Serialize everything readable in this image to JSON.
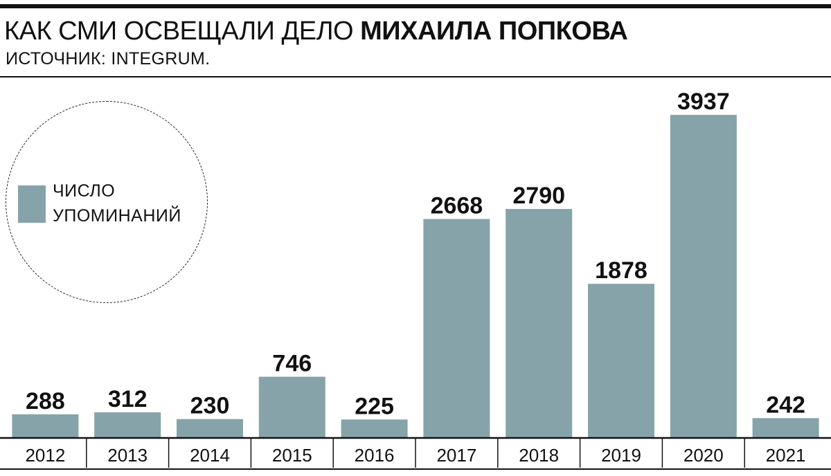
{
  "header": {
    "title_regular": "КАК СМИ ОСВЕЩАЛИ ДЕЛО ",
    "title_bold": "МИХАИЛА ПОПКОВА",
    "source": "ИСТОЧНИК: INTEGRUM."
  },
  "legend": {
    "line1": "ЧИСЛО",
    "line2": "УПОМИНАНИЙ"
  },
  "colors": {
    "bar": "#87a3aa",
    "text": "#111111"
  },
  "chart_data": {
    "type": "bar",
    "title": "КАК СМИ ОСВЕЩАЛИ ДЕЛО МИХАИЛА ПОПКОВА",
    "subtitle": "ИСТОЧНИК: INTEGRUM.",
    "categories": [
      "2012",
      "2013",
      "2014",
      "2015",
      "2016",
      "2017",
      "2018",
      "2019",
      "2020",
      "2021"
    ],
    "series": [
      {
        "name": "ЧИСЛО УПОМИНАНИЙ",
        "values": [
          288,
          312,
          230,
          746,
          225,
          2668,
          2790,
          1878,
          3937,
          242
        ]
      }
    ],
    "ylim": [
      0,
      4000
    ],
    "grid": false,
    "legend_position": "left"
  }
}
